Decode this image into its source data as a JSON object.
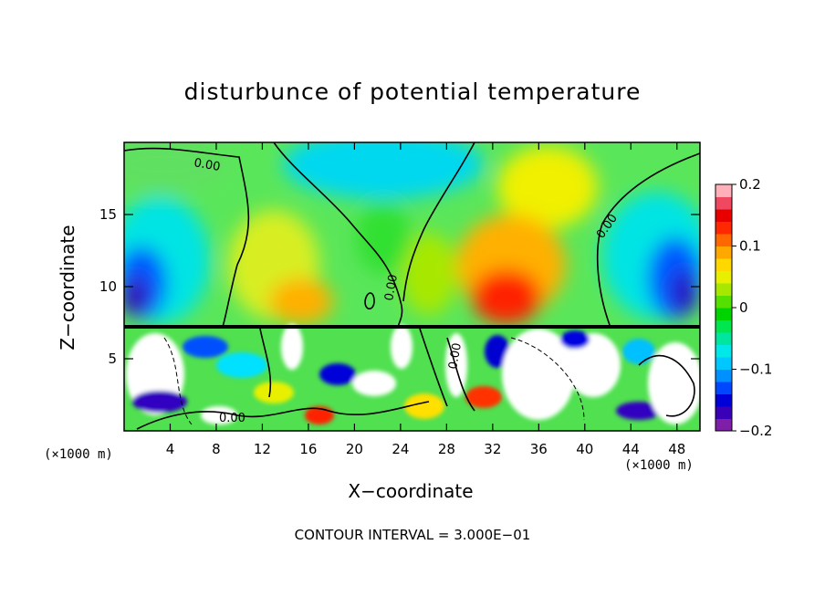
{
  "chart_data": {
    "type": "heatmap",
    "title": "disturbunce of potential temperature",
    "xlabel": "X−coordinate",
    "ylabel": "Z−coordinate",
    "x_unit_left": "(×1000 m)",
    "x_unit_right": "(×1000 m)",
    "xlim": [
      0,
      50
    ],
    "ylim": [
      0,
      20
    ],
    "x_ticks": [
      4,
      8,
      12,
      16,
      20,
      24,
      28,
      32,
      36,
      40,
      44,
      48
    ],
    "y_ticks": [
      5,
      10,
      15
    ],
    "contour_labels": [
      "0.00",
      "0.00",
      "0.00",
      "0.00",
      "0.00"
    ],
    "colorbar": {
      "range": [
        -0.2,
        0.2
      ],
      "tick_labels": [
        "0.2",
        "0.1",
        "0",
        "−0.1",
        "−0.2"
      ],
      "tick_values": [
        0.2,
        0.1,
        0.0,
        -0.1,
        -0.2
      ],
      "colors": [
        "#7f1fa8",
        "#3a00b8",
        "#0000d8",
        "#0048ff",
        "#0090ff",
        "#00c8ff",
        "#00e8e8",
        "#00e6a0",
        "#00e64e",
        "#00d400",
        "#56e000",
        "#a8e800",
        "#e8f000",
        "#ffd800",
        "#ffa800",
        "#ff6800",
        "#ff2800",
        "#e80000",
        "#f04860",
        "#ffb0b8"
      ]
    },
    "footer": "CONTOUR INTERVAL =  3.000E−01"
  }
}
